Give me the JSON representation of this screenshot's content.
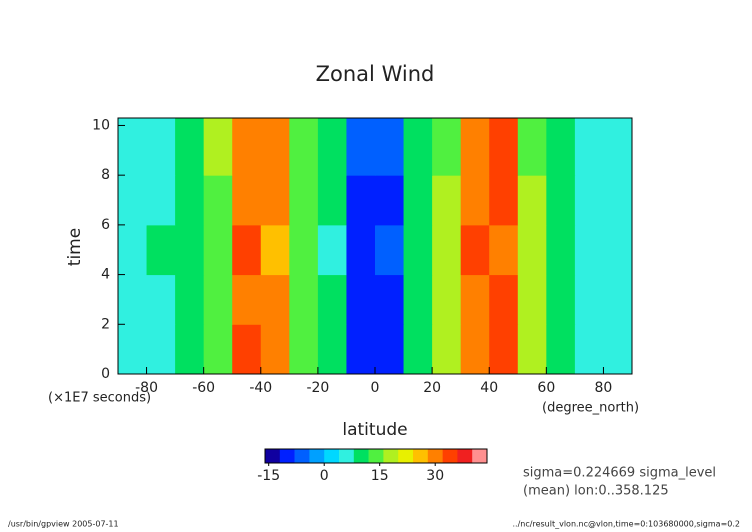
{
  "chart_data": {
    "type": "heatmap",
    "title": "Zonal Wind",
    "xlabel": "latitude",
    "ylabel": "time",
    "xunit": "(degree_north)",
    "yunit": "(×1E7 seconds)",
    "xlim": [
      -90,
      90
    ],
    "xticks": [
      -80,
      -60,
      -40,
      -20,
      0,
      20,
      40,
      60,
      80
    ],
    "ylim": [
      0,
      10.3
    ],
    "yticks": [
      0,
      2,
      4,
      6,
      8,
      10
    ],
    "x_bins": [
      -90,
      -80,
      -70,
      -60,
      -50,
      -40,
      -30,
      -20,
      -10,
      0,
      10,
      20,
      30,
      40,
      50,
      60,
      70,
      80,
      90
    ],
    "y_bins": [
      0,
      2,
      4,
      6,
      8,
      10.3
    ],
    "z": [
      [
        5,
        7,
        9,
        15,
        32,
        30,
        15,
        8,
        -12,
        -10,
        9,
        16,
        31,
        34,
        17,
        8,
        6,
        5
      ],
      [
        6,
        7,
        10,
        14,
        31,
        28,
        14,
        8,
        -10,
        -9,
        8,
        17,
        30,
        33,
        16,
        8,
        6,
        5
      ],
      [
        6,
        8,
        9,
        14,
        33,
        27,
        13,
        7,
        -9,
        -8,
        8,
        16,
        32,
        31,
        16,
        9,
        7,
        5
      ],
      [
        5,
        7,
        9,
        15,
        29,
        30,
        15,
        8,
        -9,
        -9,
        9,
        17,
        30,
        32,
        17,
        8,
        6,
        4
      ],
      [
        6,
        7,
        9,
        16,
        30,
        31,
        14,
        8,
        -8,
        -8,
        8,
        15,
        31,
        33,
        15,
        8,
        6,
        5
      ]
    ],
    "colorbar": {
      "lim": [
        -16,
        44
      ],
      "ticks": [
        -15,
        0,
        15,
        30
      ],
      "colors": [
        "#1000a0",
        "#0020ff",
        "#0060ff",
        "#00a0ff",
        "#00d8ff",
        "#30f0e0",
        "#00e060",
        "#50f040",
        "#b0f020",
        "#e8f000",
        "#ffc000",
        "#ff8000",
        "#ff4000",
        "#f02020",
        "#ff9090"
      ]
    },
    "annotations": [
      "sigma=0.224669 sigma_level",
      "(mean) lon:0..358.125"
    ],
    "footer_left": "/usr/bin/gpview  2005-07-11",
    "footer_right": "../nc/result_vlon.nc@vlon,time=0:103680000,sigma=0.2"
  }
}
